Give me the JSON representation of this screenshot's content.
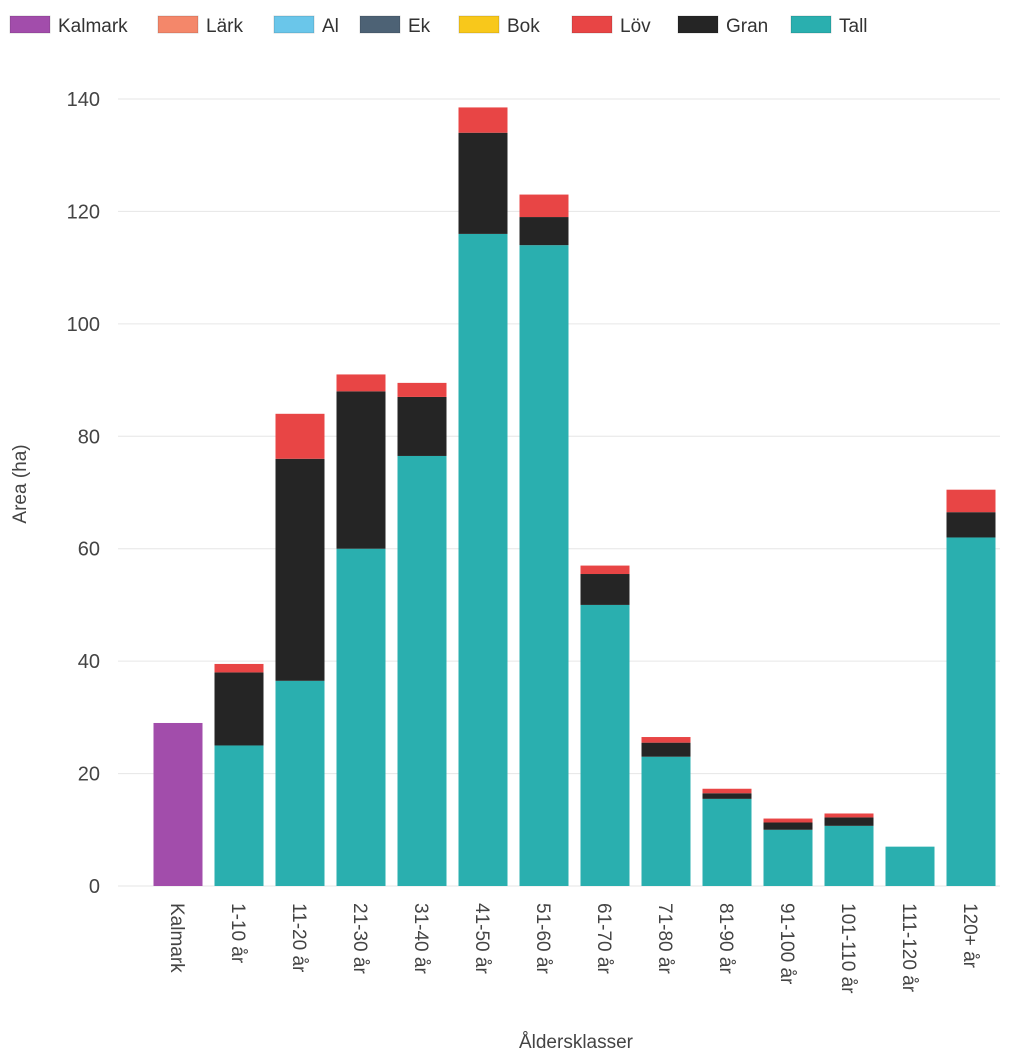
{
  "chart_data": {
    "type": "bar",
    "stacked": true,
    "title": "",
    "xlabel": "Åldersklasser",
    "ylabel": "Area (ha)",
    "ylim": [
      0,
      140
    ],
    "yticks": [
      0,
      20,
      40,
      60,
      80,
      100,
      120,
      140
    ],
    "grid": true,
    "legend_position": "top-left",
    "categories": [
      "Kalmark",
      "1-10 år",
      "11-20 år",
      "21-30 år",
      "31-40 år",
      "41-50 år",
      "51-60 år",
      "61-70 år",
      "71-80 år",
      "81-90 år",
      "91-100 år",
      "101-110 år",
      "111-120 år",
      "120+ år"
    ],
    "series": [
      {
        "name": "Kalmark",
        "color": "#a24dab",
        "values": [
          29,
          0,
          0,
          0,
          0,
          0,
          0,
          0,
          0,
          0,
          0,
          0,
          0,
          0
        ]
      },
      {
        "name": "Lärk",
        "color": "#f4876a",
        "values": [
          0,
          0,
          0,
          0,
          0,
          0,
          0,
          0,
          0,
          0,
          0,
          0,
          0,
          0
        ]
      },
      {
        "name": "Al",
        "color": "#6ac6ea",
        "values": [
          0,
          0,
          0,
          0,
          0,
          0,
          0,
          0,
          0,
          0,
          0,
          0,
          0,
          0
        ]
      },
      {
        "name": "Ek",
        "color": "#4d6275",
        "values": [
          0,
          0,
          0,
          0,
          0,
          0,
          0,
          0,
          0,
          0,
          0,
          0,
          0,
          0
        ]
      },
      {
        "name": "Bok",
        "color": "#f8c81b",
        "values": [
          0,
          0,
          0,
          0,
          0,
          0,
          0,
          0,
          0,
          0,
          0,
          0,
          0,
          0
        ]
      },
      {
        "name": "Löv",
        "color": "#e84545",
        "values": [
          0,
          1.5,
          8,
          3,
          2.5,
          4.5,
          4,
          1.5,
          1,
          0.8,
          0.7,
          0.7,
          0,
          4
        ]
      },
      {
        "name": "Gran",
        "color": "#252525",
        "values": [
          0,
          13,
          39.5,
          28,
          10.5,
          18,
          5,
          5.5,
          2.5,
          1,
          1.3,
          1.5,
          0,
          4.5
        ]
      },
      {
        "name": "Tall",
        "color": "#2aafaf",
        "values": [
          0,
          25,
          36.5,
          60,
          76.5,
          116,
          114,
          50,
          23,
          15.5,
          10,
          10.7,
          7,
          62
        ]
      }
    ]
  }
}
